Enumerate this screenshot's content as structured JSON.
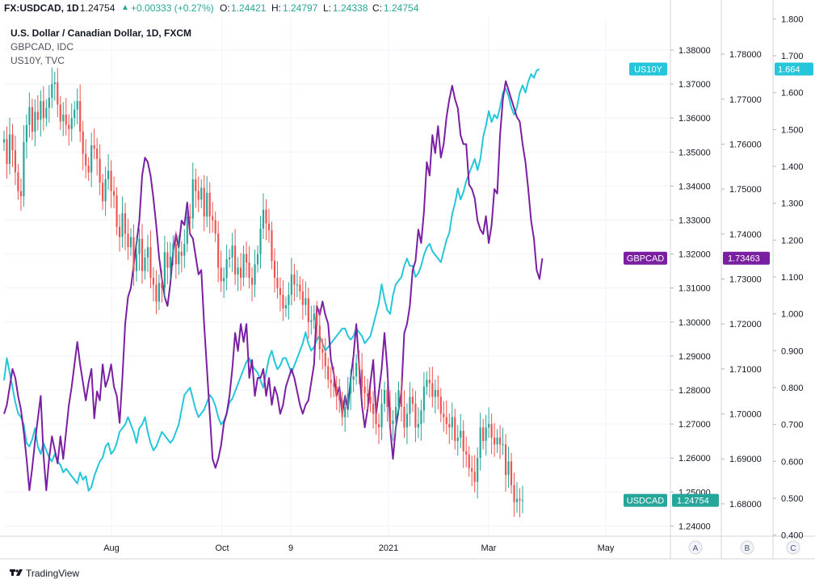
{
  "header": {
    "symbol": "FX:USDCAD, 1D",
    "last": "1.24754",
    "change": "+0.00333 (+0.27%)",
    "o_label": "O:",
    "o_value": "1.24421",
    "h_label": "H:",
    "h_value": "1.24797",
    "l_label": "L:",
    "l_value": "1.24338",
    "c_label": "C:",
    "c_value": "1.24754"
  },
  "legend": {
    "main": "U.S. Dollar / Canadian Dollar, 1D, FXCM",
    "series2": "GBPCAD, IDC",
    "series3": "US10Y, TVC"
  },
  "footer": {
    "brand": "TradingView"
  },
  "colors": {
    "up": "#26a69a",
    "down": "#ef5350",
    "gbpcad": "#7b1fa2",
    "us10y": "#26c6da",
    "usdcad_tag": "#26a69a"
  },
  "chart_data": {
    "type": "line",
    "x_ticks": [
      "Aug",
      "Oct",
      "9",
      "2021",
      "Mar",
      "May"
    ],
    "scale_labels": [
      "A",
      "B",
      "C"
    ],
    "axis_A": {
      "ticks": [
        "1.38000",
        "1.37000",
        "1.36000",
        "1.35000",
        "1.34000",
        "1.33000",
        "1.32000",
        "1.31000",
        "1.30000",
        "1.29000",
        "1.28000",
        "1.27000",
        "1.26000",
        "1.25000",
        "1.24000"
      ],
      "ylim": [
        1.237,
        1.3895
      ]
    },
    "axis_B": {
      "ticks": [
        "1.78000",
        "1.77000",
        "1.76000",
        "1.75000",
        "1.74000",
        "1.73000",
        "1.72000",
        "1.71000",
        "1.70000",
        "1.69000",
        "1.68000"
      ],
      "ylim": [
        1.6728,
        1.7881
      ]
    },
    "axis_C": {
      "ticks": [
        "1.800",
        "1.700",
        "1.600",
        "1.500",
        "1.400",
        "1.300",
        "1.200",
        "1.100",
        "1.000",
        "0.900",
        "0.800",
        "0.700",
        "0.600",
        "0.500",
        "0.400"
      ],
      "ylim": [
        0.397,
        1.803
      ]
    },
    "tags": {
      "us10y": {
        "name": "US10Y",
        "value": "1.664"
      },
      "gbpcad": {
        "name": "GBPCAD",
        "value": "1.73463"
      },
      "usdcad": {
        "name": "USDCAD",
        "value": "1.24754"
      }
    },
    "series": [
      {
        "name": "USDCAD",
        "style": "candles",
        "axis": "A",
        "values": [
          1.3538,
          1.3465,
          1.3552,
          1.3505,
          1.344,
          1.3385,
          1.337,
          1.353,
          1.358,
          1.3632,
          1.356,
          1.3618,
          1.3595,
          1.365,
          1.36,
          1.363,
          1.366,
          1.37,
          1.3705,
          1.364,
          1.359,
          1.361,
          1.358,
          1.3568,
          1.36,
          1.3625,
          1.365,
          1.356,
          1.3495,
          1.346,
          1.344,
          1.352,
          1.351,
          1.348,
          1.341,
          1.3355,
          1.342,
          1.3445,
          1.3385,
          1.3372,
          1.328,
          1.325,
          1.332,
          1.326,
          1.322,
          1.325,
          1.315,
          1.32,
          1.3245,
          1.315,
          1.319,
          1.322,
          1.313,
          1.311,
          1.306,
          1.3115,
          1.31,
          1.3205,
          1.316,
          1.3192,
          1.323,
          1.317,
          1.3207,
          1.3195,
          1.323,
          1.331,
          1.3305,
          1.342,
          1.3385,
          1.336,
          1.3395,
          1.331,
          1.338,
          1.331,
          1.33,
          1.326,
          1.316,
          1.312,
          1.313,
          1.3185,
          1.319,
          1.3225,
          1.314,
          1.316,
          1.313,
          1.32,
          1.3175,
          1.313,
          1.311,
          1.317,
          1.32,
          1.3275,
          1.333,
          1.329,
          1.327,
          1.318,
          1.313,
          1.31,
          1.308,
          1.304,
          1.305,
          1.308,
          1.314,
          1.311,
          1.311,
          1.309,
          1.305,
          1.307,
          1.3,
          1.3005,
          1.3025,
          1.299,
          1.292,
          1.291,
          1.287,
          1.283,
          1.282,
          1.281,
          1.279,
          1.277,
          1.272,
          1.275,
          1.279,
          1.283,
          1.284,
          1.288,
          1.286,
          1.281,
          1.279,
          1.278,
          1.276,
          1.273,
          1.27,
          1.269,
          1.276,
          1.28,
          1.275,
          1.27,
          1.271,
          1.275,
          1.28,
          1.275,
          1.269,
          1.273,
          1.278,
          1.276,
          1.269,
          1.27,
          1.274,
          1.281,
          1.283,
          1.282,
          1.278,
          1.28,
          1.278,
          1.273,
          1.272,
          1.27,
          1.269,
          1.272,
          1.265,
          1.266,
          1.268,
          1.262,
          1.261,
          1.257,
          1.256,
          1.253,
          1.26,
          1.269,
          1.265,
          1.269,
          1.27,
          1.266,
          1.264,
          1.266,
          1.264,
          1.264,
          1.255,
          1.259,
          1.252,
          1.247,
          1.248,
          1.2475,
          1.24754
        ]
      },
      {
        "name": "GBPCAD",
        "axis": "B",
        "values": [
          1.7,
          1.702,
          1.706,
          1.71,
          1.708,
          1.704,
          1.701,
          1.696,
          1.69,
          1.683,
          1.688,
          1.694,
          1.699,
          1.704,
          1.691,
          1.683,
          1.69,
          1.695,
          1.692,
          1.689,
          1.695,
          1.69,
          1.696,
          1.702,
          1.706,
          1.711,
          1.716,
          1.711,
          1.707,
          1.703,
          1.707,
          1.71,
          1.699,
          1.705,
          1.703,
          1.711,
          1.706,
          1.708,
          1.711,
          1.706,
          1.704,
          1.698,
          1.708,
          1.72,
          1.726,
          1.728,
          1.733,
          1.738,
          1.743,
          1.753,
          1.757,
          1.756,
          1.753,
          1.748,
          1.742,
          1.735,
          1.73,
          1.726,
          1.724,
          1.729,
          1.736,
          1.74,
          1.737,
          1.743,
          1.742,
          1.747,
          1.74,
          1.739,
          1.735,
          1.731,
          1.732,
          1.72,
          1.71,
          1.7,
          1.69,
          1.688,
          1.69,
          1.693,
          1.698,
          1.7,
          1.704,
          1.71,
          1.718,
          1.714,
          1.72,
          1.716,
          1.72,
          1.708,
          1.712,
          1.704,
          1.708,
          1.708,
          1.71,
          1.704,
          1.708,
          1.702,
          1.706,
          1.704,
          1.7,
          1.702,
          1.706,
          1.708,
          1.71,
          1.708,
          1.705,
          1.702,
          1.7,
          1.702,
          1.703,
          1.707,
          1.711,
          1.724,
          1.722,
          1.725,
          1.722,
          1.72,
          1.712,
          1.709,
          1.704,
          1.706,
          1.7,
          1.704,
          1.701,
          1.708,
          1.713,
          1.72,
          1.711,
          1.702,
          1.697,
          1.701,
          1.707,
          1.712,
          1.7,
          1.705,
          1.71,
          1.718,
          1.71,
          1.697,
          1.69,
          1.697,
          1.701,
          1.705,
          1.718,
          1.72,
          1.724,
          1.732,
          1.734,
          1.741,
          1.738,
          1.745,
          1.756,
          1.753,
          1.762,
          1.758,
          1.764,
          1.757,
          1.76,
          1.766,
          1.77,
          1.773,
          1.77,
          1.768,
          1.762,
          1.76,
          1.76,
          1.751,
          1.75,
          1.748,
          1.743,
          1.741,
          1.74,
          1.744,
          1.738,
          1.742,
          1.75,
          1.749,
          1.762,
          1.77,
          1.774,
          1.772,
          1.77,
          1.768,
          1.766,
          1.765,
          1.76,
          1.756,
          1.75,
          1.743,
          1.739,
          1.732,
          1.73,
          1.7346
        ]
      },
      {
        "name": "US10Y",
        "axis": "C",
        "values": [
          0.82,
          0.88,
          0.84,
          0.8,
          0.76,
          0.73,
          0.72,
          0.7,
          0.65,
          0.64,
          0.66,
          0.69,
          0.64,
          0.62,
          0.65,
          0.63,
          0.61,
          0.6,
          0.62,
          0.6,
          0.59,
          0.57,
          0.58,
          0.57,
          0.56,
          0.55,
          0.54,
          0.57,
          0.55,
          0.56,
          0.52,
          0.53,
          0.56,
          0.58,
          0.6,
          0.61,
          0.64,
          0.65,
          0.62,
          0.63,
          0.65,
          0.68,
          0.69,
          0.7,
          0.72,
          0.7,
          0.68,
          0.65,
          0.69,
          0.7,
          0.72,
          0.68,
          0.65,
          0.63,
          0.64,
          0.66,
          0.68,
          0.67,
          0.66,
          0.65,
          0.66,
          0.68,
          0.7,
          0.74,
          0.78,
          0.79,
          0.8,
          0.77,
          0.74,
          0.72,
          0.73,
          0.74,
          0.76,
          0.78,
          0.77,
          0.75,
          0.72,
          0.7,
          0.71,
          0.73,
          0.76,
          0.77,
          0.79,
          0.81,
          0.83,
          0.85,
          0.87,
          0.88,
          0.86,
          0.85,
          0.84,
          0.82,
          0.8,
          0.84,
          0.88,
          0.9,
          0.87,
          0.85,
          0.86,
          0.88,
          0.88,
          0.86,
          0.84,
          0.86,
          0.88,
          0.9,
          0.92,
          0.95,
          0.92,
          0.9,
          0.91,
          0.93,
          0.94,
          0.92,
          0.9,
          0.91,
          0.92,
          0.93,
          0.94,
          0.95,
          0.96,
          0.96,
          0.94,
          0.93,
          0.94,
          0.96,
          0.95,
          0.94,
          0.92,
          0.93,
          0.94,
          0.97,
          1.0,
          1.03,
          1.08,
          1.04,
          1.01,
          1.0,
          1.05,
          1.08,
          1.09,
          1.1,
          1.13,
          1.15,
          1.13,
          1.13,
          1.1,
          1.11,
          1.13,
          1.16,
          1.18,
          1.19,
          1.17,
          1.16,
          1.15,
          1.14,
          1.17,
          1.2,
          1.22,
          1.27,
          1.3,
          1.34,
          1.31,
          1.33,
          1.36,
          1.38,
          1.4,
          1.42,
          1.39,
          1.42,
          1.48,
          1.51,
          1.55,
          1.52,
          1.54,
          1.53,
          1.56,
          1.6,
          1.61,
          1.59,
          1.56,
          1.54,
          1.56,
          1.6,
          1.62,
          1.6,
          1.63,
          1.65,
          1.64,
          1.66,
          1.664
        ]
      }
    ]
  }
}
